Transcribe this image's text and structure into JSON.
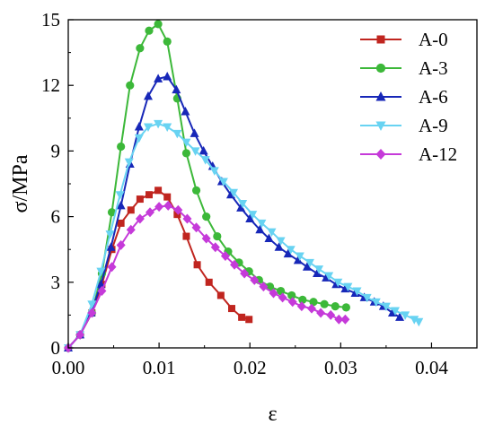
{
  "chart_data": {
    "type": "line",
    "xlabel": "ε",
    "ylabel": "σ/MPa",
    "xlim": [
      0.0,
      0.045
    ],
    "ylim": [
      0,
      15
    ],
    "x_ticks": [
      "0.00",
      "0.01",
      "0.02",
      "0.03",
      "0.04"
    ],
    "y_ticks": [
      "0",
      "3",
      "6",
      "9",
      "12",
      "15"
    ],
    "legend_position": "top-right",
    "grid": false,
    "series": [
      {
        "name": "A-0",
        "color": "#c0251f",
        "marker": "square",
        "points": [
          [
            0.0,
            0.0
          ],
          [
            0.0013,
            0.6
          ],
          [
            0.0026,
            1.6
          ],
          [
            0.0037,
            2.9
          ],
          [
            0.0048,
            4.5
          ],
          [
            0.0058,
            5.7
          ],
          [
            0.0069,
            6.3
          ],
          [
            0.0079,
            6.8
          ],
          [
            0.0089,
            7.0
          ],
          [
            0.0099,
            7.2
          ],
          [
            0.0109,
            6.9
          ],
          [
            0.012,
            6.1
          ],
          [
            0.013,
            5.1
          ],
          [
            0.0142,
            3.8
          ],
          [
            0.0155,
            3.0
          ],
          [
            0.0168,
            2.4
          ],
          [
            0.018,
            1.8
          ],
          [
            0.0191,
            1.4
          ],
          [
            0.0199,
            1.3
          ]
        ]
      },
      {
        "name": "A-3",
        "color": "#3cb839",
        "marker": "circle",
        "points": [
          [
            0.0,
            0.0
          ],
          [
            0.0013,
            0.6
          ],
          [
            0.0026,
            1.6
          ],
          [
            0.0037,
            3.4
          ],
          [
            0.0048,
            6.2
          ],
          [
            0.0058,
            9.2
          ],
          [
            0.0068,
            12.0
          ],
          [
            0.0079,
            13.7
          ],
          [
            0.0089,
            14.5
          ],
          [
            0.0099,
            14.8
          ],
          [
            0.0109,
            14.0
          ],
          [
            0.012,
            11.4
          ],
          [
            0.013,
            8.9
          ],
          [
            0.0141,
            7.2
          ],
          [
            0.0152,
            6.0
          ],
          [
            0.0164,
            5.1
          ],
          [
            0.0176,
            4.4
          ],
          [
            0.0188,
            3.9
          ],
          [
            0.0199,
            3.5
          ],
          [
            0.021,
            3.1
          ],
          [
            0.0222,
            2.8
          ],
          [
            0.0234,
            2.6
          ],
          [
            0.0246,
            2.4
          ],
          [
            0.0258,
            2.2
          ],
          [
            0.027,
            2.1
          ],
          [
            0.0282,
            2.0
          ],
          [
            0.0294,
            1.9
          ],
          [
            0.0306,
            1.85
          ]
        ]
      },
      {
        "name": "A-6",
        "color": "#1727b8",
        "marker": "triangle-up",
        "points": [
          [
            0.0,
            0.0
          ],
          [
            0.0013,
            0.6
          ],
          [
            0.0025,
            1.6
          ],
          [
            0.0036,
            2.9
          ],
          [
            0.0047,
            4.6
          ],
          [
            0.0058,
            6.5
          ],
          [
            0.0068,
            8.4
          ],
          [
            0.0078,
            10.1
          ],
          [
            0.0088,
            11.5
          ],
          [
            0.0099,
            12.3
          ],
          [
            0.0109,
            12.4
          ],
          [
            0.0119,
            11.8
          ],
          [
            0.0129,
            10.8
          ],
          [
            0.0139,
            9.8
          ],
          [
            0.0149,
            9.0
          ],
          [
            0.0159,
            8.3
          ],
          [
            0.0169,
            7.6
          ],
          [
            0.0179,
            7.0
          ],
          [
            0.019,
            6.4
          ],
          [
            0.02,
            5.9
          ],
          [
            0.0211,
            5.4
          ],
          [
            0.0221,
            5.0
          ],
          [
            0.0232,
            4.6
          ],
          [
            0.0242,
            4.3
          ],
          [
            0.0253,
            4.0
          ],
          [
            0.0263,
            3.7
          ],
          [
            0.0274,
            3.4
          ],
          [
            0.0284,
            3.2
          ],
          [
            0.0295,
            2.9
          ],
          [
            0.0305,
            2.7
          ],
          [
            0.0316,
            2.5
          ],
          [
            0.0326,
            2.3
          ],
          [
            0.0337,
            2.1
          ],
          [
            0.0347,
            1.9
          ],
          [
            0.0357,
            1.6
          ],
          [
            0.0365,
            1.4
          ]
        ]
      },
      {
        "name": "A-9",
        "color": "#68d3f2",
        "marker": "triangle-down",
        "points": [
          [
            0.0,
            0.0
          ],
          [
            0.0013,
            0.6
          ],
          [
            0.0026,
            2.0
          ],
          [
            0.0036,
            3.5
          ],
          [
            0.0046,
            5.2
          ],
          [
            0.0057,
            7.0
          ],
          [
            0.0067,
            8.5
          ],
          [
            0.0078,
            9.6
          ],
          [
            0.0088,
            10.1
          ],
          [
            0.0099,
            10.25
          ],
          [
            0.0109,
            10.1
          ],
          [
            0.012,
            9.8
          ],
          [
            0.013,
            9.4
          ],
          [
            0.014,
            9.0
          ],
          [
            0.0151,
            8.6
          ],
          [
            0.0161,
            8.1
          ],
          [
            0.0171,
            7.6
          ],
          [
            0.0182,
            7.1
          ],
          [
            0.0192,
            6.6
          ],
          [
            0.0203,
            6.1
          ],
          [
            0.0213,
            5.7
          ],
          [
            0.0224,
            5.3
          ],
          [
            0.0234,
            4.9
          ],
          [
            0.0245,
            4.5
          ],
          [
            0.0255,
            4.2
          ],
          [
            0.0266,
            3.9
          ],
          [
            0.0276,
            3.6
          ],
          [
            0.0287,
            3.3
          ],
          [
            0.0297,
            3.0
          ],
          [
            0.0308,
            2.8
          ],
          [
            0.0318,
            2.6
          ],
          [
            0.0329,
            2.3
          ],
          [
            0.0339,
            2.1
          ],
          [
            0.035,
            1.9
          ],
          [
            0.036,
            1.7
          ],
          [
            0.0371,
            1.5
          ],
          [
            0.0381,
            1.3
          ],
          [
            0.0386,
            1.2
          ]
        ]
      },
      {
        "name": "A-12",
        "color": "#c53ad9",
        "marker": "diamond",
        "points": [
          [
            0.0,
            0.0
          ],
          [
            0.0013,
            0.6
          ],
          [
            0.0026,
            1.6
          ],
          [
            0.0037,
            2.6
          ],
          [
            0.0048,
            3.7
          ],
          [
            0.0058,
            4.7
          ],
          [
            0.0069,
            5.4
          ],
          [
            0.0079,
            5.9
          ],
          [
            0.009,
            6.2
          ],
          [
            0.01,
            6.45
          ],
          [
            0.011,
            6.5
          ],
          [
            0.0121,
            6.3
          ],
          [
            0.0131,
            5.9
          ],
          [
            0.0141,
            5.5
          ],
          [
            0.0152,
            5.0
          ],
          [
            0.0162,
            4.6
          ],
          [
            0.0173,
            4.2
          ],
          [
            0.0183,
            3.8
          ],
          [
            0.0194,
            3.4
          ],
          [
            0.0205,
            3.1
          ],
          [
            0.0215,
            2.8
          ],
          [
            0.0226,
            2.5
          ],
          [
            0.0236,
            2.3
          ],
          [
            0.0247,
            2.1
          ],
          [
            0.0257,
            1.9
          ],
          [
            0.0268,
            1.8
          ],
          [
            0.0278,
            1.6
          ],
          [
            0.0289,
            1.5
          ],
          [
            0.0298,
            1.3
          ],
          [
            0.0305,
            1.3
          ]
        ]
      }
    ]
  }
}
